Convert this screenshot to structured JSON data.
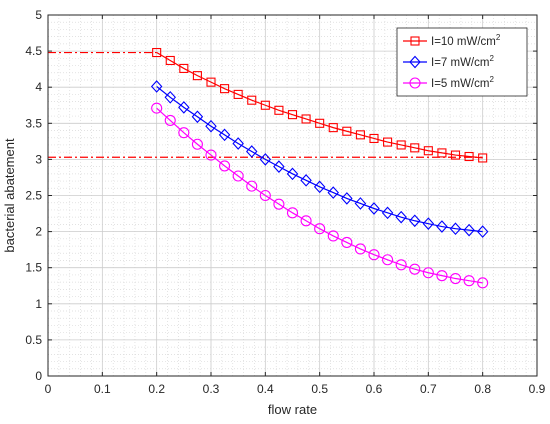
{
  "chart_data": {
    "type": "line",
    "title": "",
    "xlabel": "flow rate",
    "ylabel": "bacterial abatement",
    "xlim": [
      0,
      0.9
    ],
    "ylim": [
      0,
      5
    ],
    "xticks": [
      0,
      0.1,
      0.2,
      0.3,
      0.4,
      0.5,
      0.6,
      0.7,
      0.8,
      0.9
    ],
    "xtick_labels": [
      "0",
      "0.1",
      "0.2",
      "0.3",
      "0.4",
      "0.5",
      "0.6",
      "0.7",
      "0.8",
      "0.9"
    ],
    "yticks": [
      0,
      0.5,
      1,
      1.5,
      2,
      2.5,
      3,
      3.5,
      4,
      4.5,
      5
    ],
    "ytick_labels": [
      "0",
      "0.5",
      "1",
      "1.5",
      "2",
      "2.5",
      "3",
      "3.5",
      "4",
      "4.5",
      "5"
    ],
    "grid": true,
    "minor_grid": true,
    "legend_position": "top-right",
    "x": [
      0.2,
      0.225,
      0.25,
      0.275,
      0.3,
      0.325,
      0.35,
      0.375,
      0.4,
      0.425,
      0.45,
      0.475,
      0.5,
      0.525,
      0.55,
      0.575,
      0.6,
      0.625,
      0.65,
      0.675,
      0.7,
      0.725,
      0.75,
      0.775,
      0.8
    ],
    "series": [
      {
        "name": "I=10 mW/cm",
        "name_sup": "2",
        "color": "#ff0000",
        "marker": "square",
        "values": [
          4.48,
          4.37,
          4.26,
          4.16,
          4.07,
          3.98,
          3.9,
          3.82,
          3.75,
          3.68,
          3.62,
          3.56,
          3.5,
          3.44,
          3.39,
          3.34,
          3.29,
          3.24,
          3.2,
          3.16,
          3.12,
          3.09,
          3.06,
          3.04,
          3.02
        ]
      },
      {
        "name": "I=7 mW/cm",
        "name_sup": "2",
        "color": "#0000ff",
        "marker": "diamond",
        "values": [
          4.01,
          3.86,
          3.72,
          3.59,
          3.46,
          3.34,
          3.22,
          3.11,
          3.0,
          2.9,
          2.8,
          2.71,
          2.62,
          2.54,
          2.46,
          2.39,
          2.32,
          2.26,
          2.2,
          2.15,
          2.11,
          2.07,
          2.04,
          2.02,
          2.0
        ]
      },
      {
        "name": "I=5 mW/cm",
        "name_sup": "2",
        "color": "#ff00ff",
        "marker": "circle",
        "values": [
          3.71,
          3.54,
          3.37,
          3.21,
          3.06,
          2.91,
          2.77,
          2.63,
          2.5,
          2.38,
          2.26,
          2.15,
          2.04,
          1.94,
          1.85,
          1.76,
          1.68,
          1.61,
          1.54,
          1.48,
          1.43,
          1.39,
          1.35,
          1.32,
          1.29
        ]
      }
    ],
    "reference_lines": [
      {
        "orientation": "horizontal",
        "y": 4.48,
        "x_start": 0,
        "x_end": 0.2,
        "color": "#ff0000",
        "style": "dash-dot"
      },
      {
        "orientation": "horizontal",
        "y": 3.03,
        "x_start": 0,
        "x_end": 0.8,
        "color": "#ff0000",
        "style": "dash-dot"
      }
    ]
  }
}
